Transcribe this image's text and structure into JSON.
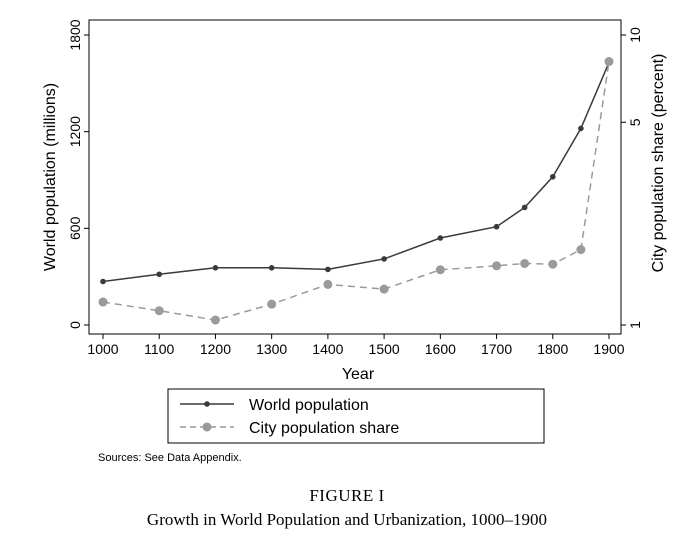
{
  "chart_data": {
    "type": "line",
    "xlabel": "Year",
    "ylabel_left": "World population (millions)",
    "ylabel_right": "City population share (percent)",
    "x": [
      1000,
      1100,
      1200,
      1300,
      1400,
      1500,
      1600,
      1700,
      1750,
      1800,
      1850,
      1900
    ],
    "x_ticks": [
      1000,
      1100,
      1200,
      1300,
      1400,
      1500,
      1600,
      1700,
      1800,
      1900
    ],
    "left_ticks": [
      0,
      600,
      1200,
      1800
    ],
    "left_ylim": [
      0,
      1800
    ],
    "right_ticks": [
      1,
      5,
      10
    ],
    "right_scale": "log",
    "right_ylim": [
      1,
      10
    ],
    "grid": false,
    "legend_position": "bottom",
    "series": [
      {
        "name": "World population",
        "axis": "left",
        "style": "solid",
        "color": "#3a3a3a",
        "values": [
          270,
          315,
          355,
          355,
          345,
          410,
          540,
          610,
          730,
          920,
          1220,
          1630
        ]
      },
      {
        "name": "City population share",
        "axis": "right",
        "style": "dashed",
        "color": "#9a9a9a",
        "values": [
          1.2,
          1.12,
          1.04,
          1.18,
          1.38,
          1.33,
          1.55,
          1.6,
          1.63,
          1.62,
          1.82,
          8.1
        ]
      }
    ]
  },
  "source_note": "Sources: See Data Appendix.",
  "figure_label": "FIGURE I",
  "figure_title": "Growth in World Population and Urbanization, 1000–1900"
}
